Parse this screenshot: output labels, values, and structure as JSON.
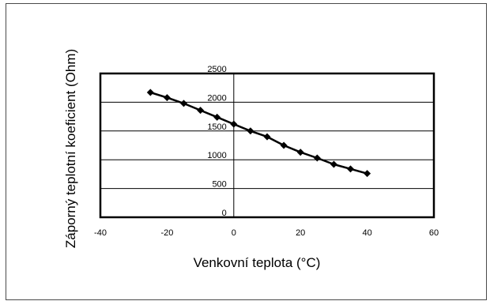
{
  "chart_data": {
    "type": "line",
    "title": "",
    "xlabel": "Venkovní teplota (°C)",
    "ylabel": "Záporný teplotní koeficient (Ohm)",
    "xlim": [
      -40,
      60
    ],
    "ylim": [
      0,
      2500
    ],
    "xticks": [
      "-40",
      "-20",
      "0",
      "20",
      "40",
      "60"
    ],
    "yticks": [
      "0",
      "500",
      "1000",
      "1500",
      "2000",
      "2500"
    ],
    "grid": "horizontal",
    "legend": "none",
    "series": [
      {
        "color": "#000000",
        "marker": "diamond",
        "x": [
          -25,
          -20,
          -15,
          -10,
          -5,
          0,
          5,
          10,
          15,
          20,
          25,
          30,
          35,
          40
        ],
        "y": [
          2170,
          2080,
          1980,
          1860,
          1740,
          1620,
          1500,
          1400,
          1250,
          1130,
          1030,
          920,
          840,
          760
        ]
      }
    ]
  }
}
